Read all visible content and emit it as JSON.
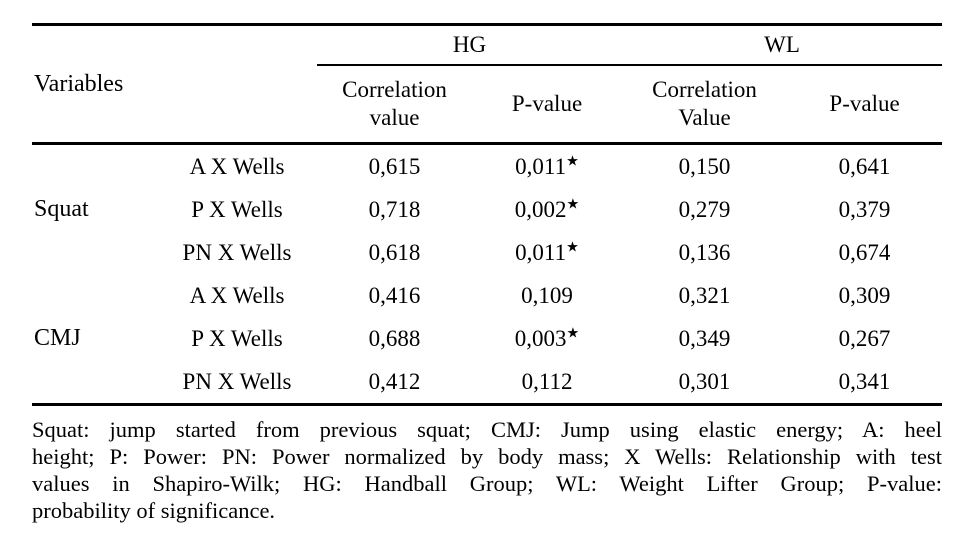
{
  "table": {
    "variables_header": "Variables",
    "groups": {
      "hg": "HG",
      "wl": "WL"
    },
    "col_headers": {
      "hg_corr_line1": "Correlation",
      "hg_corr_line2": "value",
      "hg_p": "P-value",
      "wl_corr_line1": "Correlation",
      "wl_corr_line2": "Value",
      "wl_p": "P-value"
    },
    "body": [
      {
        "group": "Squat",
        "rows": [
          {
            "comparison": "A X Wells",
            "hg_corr": "0,615",
            "hg_p": "0,011",
            "hg_p_star": "★",
            "wl_corr": "0,150",
            "wl_p": "0,641"
          },
          {
            "comparison": "P X Wells",
            "hg_corr": "0,718",
            "hg_p": "0,002",
            "hg_p_star": "★",
            "wl_corr": "0,279",
            "wl_p": "0,379"
          },
          {
            "comparison": "PN X Wells",
            "hg_corr": "0,618",
            "hg_p": "0,011",
            "hg_p_star": "★",
            "wl_corr": "0,136",
            "wl_p": "0,674"
          }
        ]
      },
      {
        "group": "CMJ",
        "rows": [
          {
            "comparison": "A X Wells",
            "hg_corr": "0,416",
            "hg_p": "0,109",
            "hg_p_star": "",
            "wl_corr": "0,321",
            "wl_p": "0,309"
          },
          {
            "comparison": "P X Wells",
            "hg_corr": "0,688",
            "hg_p": "0,003",
            "hg_p_star": "★",
            "wl_corr": "0,349",
            "wl_p": "0,267"
          },
          {
            "comparison": "PN X Wells",
            "hg_corr": "0,412",
            "hg_p": "0,112",
            "hg_p_star": "",
            "wl_corr": "0,301",
            "wl_p": "0,341"
          }
        ]
      }
    ]
  },
  "footnote": {
    "lines": [
      "Squat: jump started from previous squat; CMJ: Jump using elastic energy; A: heel",
      "height; P: Power: PN: Power normalized by body mass; X Wells: Relationship with test",
      "values in Shapiro-Wilk; HG: Handball Group; WL: Weight Lifter Group; P-value:",
      "probability of significance."
    ]
  }
}
